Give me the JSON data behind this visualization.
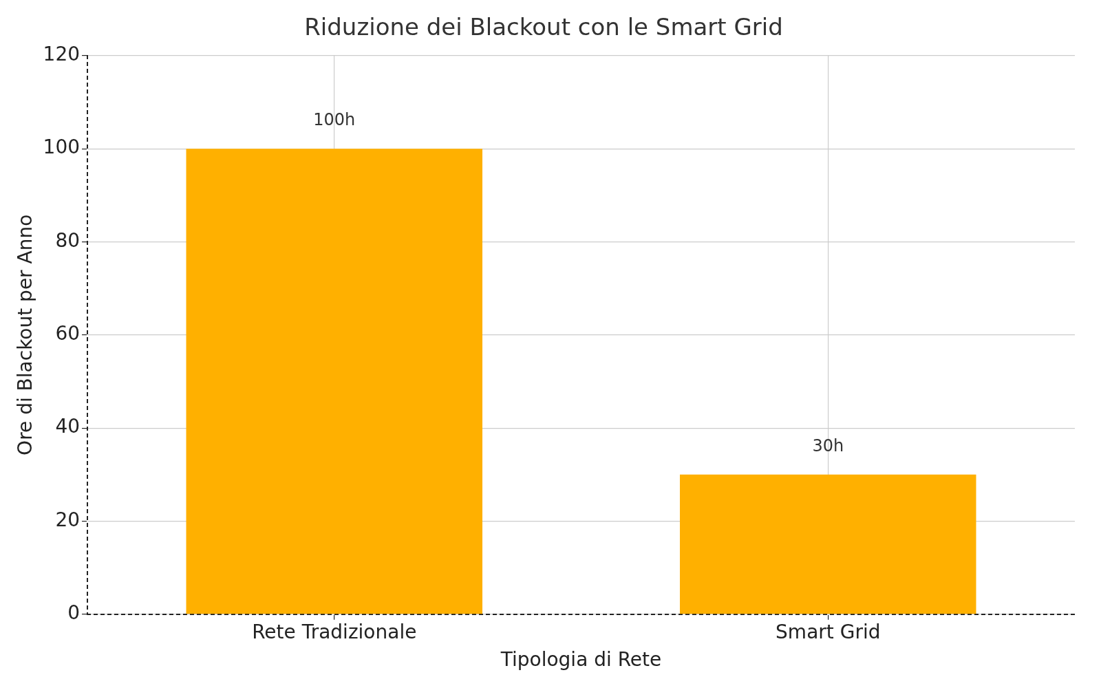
{
  "chart_data": {
    "type": "bar",
    "title": "Riduzione dei Blackout con le Smart Grid",
    "xlabel": "Tipologia di Rete",
    "ylabel": "Ore di Blackout per Anno",
    "categories": [
      "Rete Tradizionale",
      "Smart Grid"
    ],
    "values": [
      100,
      30
    ],
    "value_labels": [
      "100h",
      "30h"
    ],
    "color": "#ffb000",
    "ylim": [
      0,
      120
    ],
    "yticks": [
      0,
      20,
      40,
      60,
      80,
      100,
      120
    ],
    "grid": true
  }
}
